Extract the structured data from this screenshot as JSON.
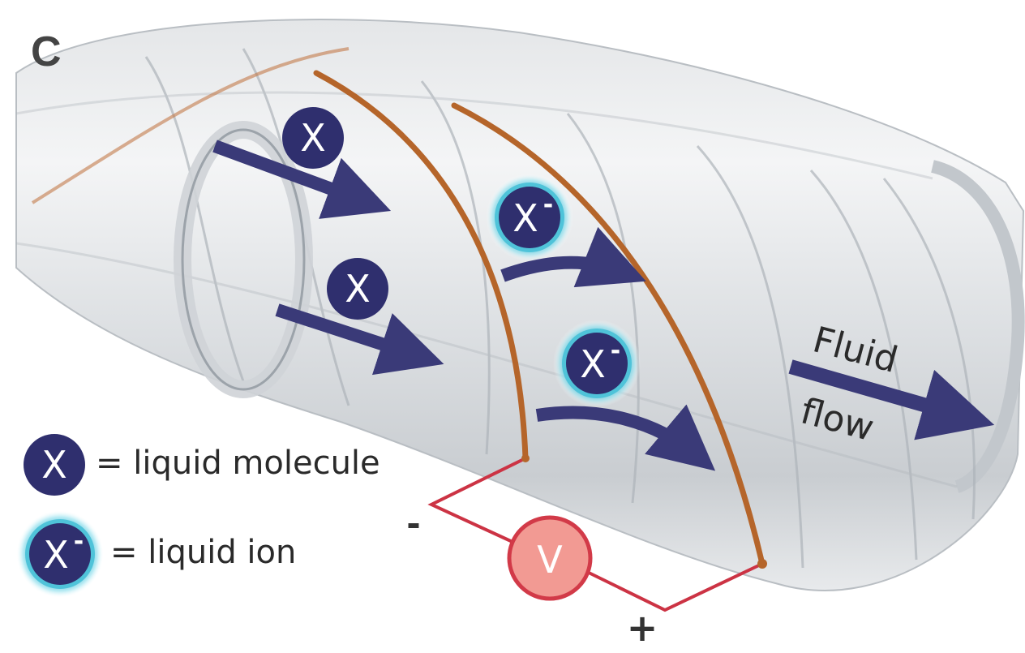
{
  "panel_label": "C",
  "molecule_symbol": "X",
  "ion_symbol": "X",
  "ion_charge": "-",
  "legend": {
    "molecule_text": "= liquid molecule",
    "ion_text": "= liquid ion"
  },
  "flow_label": {
    "line1": "Fluid",
    "line2": "flow"
  },
  "circuit": {
    "meter_symbol": "V",
    "negative": "-",
    "positive": "+"
  },
  "colors": {
    "particle_fill": "#2f2f6e",
    "arrow": "#3a3a78",
    "ion_glow": "#4fc3d9",
    "copper": "#b5652a",
    "wire": "#cc3344",
    "meter_fill": "#f29a93",
    "meter_stroke": "#d23a48"
  }
}
